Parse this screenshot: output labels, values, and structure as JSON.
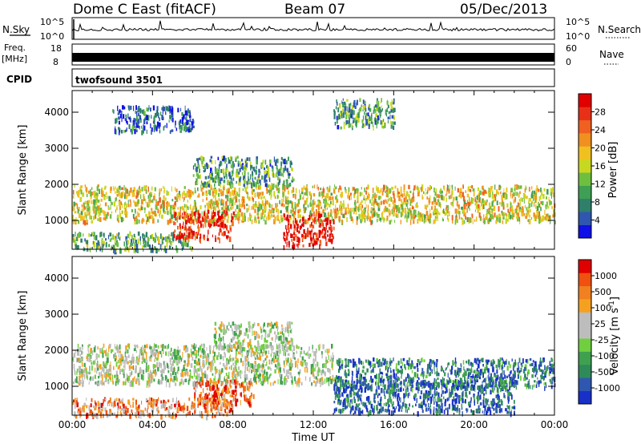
{
  "header": {
    "station": "Dome C East (fitACF)",
    "beam": "Beam 07",
    "date": "05/Dec/2013"
  },
  "strip_labels": {
    "nsky": "N.Sky",
    "nsky_top": "10^5",
    "nsky_bottom": "10^0",
    "nsearch": "N.Search",
    "nsearch_top": "10^5",
    "nsearch_bottom": "10^0",
    "freq_line1": "Freq.",
    "freq_line2": "[MHz]",
    "freq_top": "18",
    "freq_bottom": "8",
    "nave": "Nave",
    "nave_top": "60",
    "nave_bottom": "0",
    "cpid": "CPID",
    "cpid_value": "twofsound 3501"
  },
  "chart_data": [
    {
      "type": "heatmap",
      "name": "power-panel",
      "ylabel": "Slant Range [km]",
      "yticks": [
        "1000",
        "2000",
        "3000",
        "4000"
      ],
      "ylim": [
        200,
        4600
      ],
      "xlim": [
        0,
        24
      ],
      "colorbar": {
        "label": "Power [dB]",
        "ticks": [
          "4",
          "8",
          "12",
          "16",
          "20",
          "24",
          "28"
        ],
        "colors": [
          "#1010e8",
          "#2f57b0",
          "#2f7f6a",
          "#3f9f55",
          "#6fbf3f",
          "#c8d820",
          "#f0c020",
          "#f09020",
          "#f06020",
          "#e83018",
          "#e00000"
        ]
      },
      "features": [
        {
          "t0": 0.0,
          "t1": 24.0,
          "r0": 1000,
          "r1": 2000,
          "level": 0.55
        },
        {
          "t0": 0.0,
          "t1": 6.0,
          "r0": 200,
          "r1": 700,
          "level": 0.35
        },
        {
          "t0": 5.0,
          "t1": 8.0,
          "r0": 500,
          "r1": 1300,
          "level": 0.9
        },
        {
          "t0": 10.5,
          "t1": 13.0,
          "r0": 300,
          "r1": 1200,
          "level": 0.95
        },
        {
          "t0": 6.0,
          "t1": 11.0,
          "r0": 2000,
          "r1": 2800,
          "level": 0.3
        },
        {
          "t0": 2.0,
          "t1": 6.0,
          "r0": 3500,
          "r1": 4200,
          "level": 0.15
        },
        {
          "t0": 13.0,
          "t1": 16.0,
          "r0": 3600,
          "r1": 4400,
          "level": 0.3
        }
      ]
    },
    {
      "type": "heatmap",
      "name": "velocity-panel",
      "xlabel": "Time UT",
      "ylabel": "Slant Range [km]",
      "xticks": [
        "00:00",
        "04:00",
        "08:00",
        "12:00",
        "16:00",
        "20:00",
        "00:00"
      ],
      "yticks": [
        "1000",
        "2000",
        "3000",
        "4000"
      ],
      "ylim": [
        200,
        4600
      ],
      "xlim": [
        0,
        24
      ],
      "colorbar": {
        "label": "Velocity [m s-1]",
        "ticks": [
          "1000",
          "500",
          "100",
          "25",
          "-25",
          "-100",
          "-500",
          "-1000"
        ],
        "colors": [
          "#1830c8",
          "#2f57b0",
          "#2f8a5a",
          "#3fa050",
          "#6fcf3f",
          "#bdbdbd",
          "#bdbdbd",
          "#f5a020",
          "#f08020",
          "#f05010",
          "#e00000"
        ]
      },
      "features": [
        {
          "t0": 0.0,
          "t1": 13.0,
          "r0": 1100,
          "r1": 2200,
          "level": 0.5
        },
        {
          "t0": 13.0,
          "t1": 24.0,
          "r0": 1000,
          "r1": 1800,
          "level": 0.2
        },
        {
          "t0": 0.0,
          "t1": 8.0,
          "r0": 200,
          "r1": 700,
          "level": 0.75
        },
        {
          "t0": 6.0,
          "t1": 9.0,
          "r0": 500,
          "r1": 1200,
          "level": 0.8
        },
        {
          "t0": 13.0,
          "t1": 22.0,
          "r0": 300,
          "r1": 1200,
          "level": 0.15
        },
        {
          "t0": 7.0,
          "t1": 11.0,
          "r0": 2100,
          "r1": 2800,
          "level": 0.5
        }
      ]
    }
  ]
}
